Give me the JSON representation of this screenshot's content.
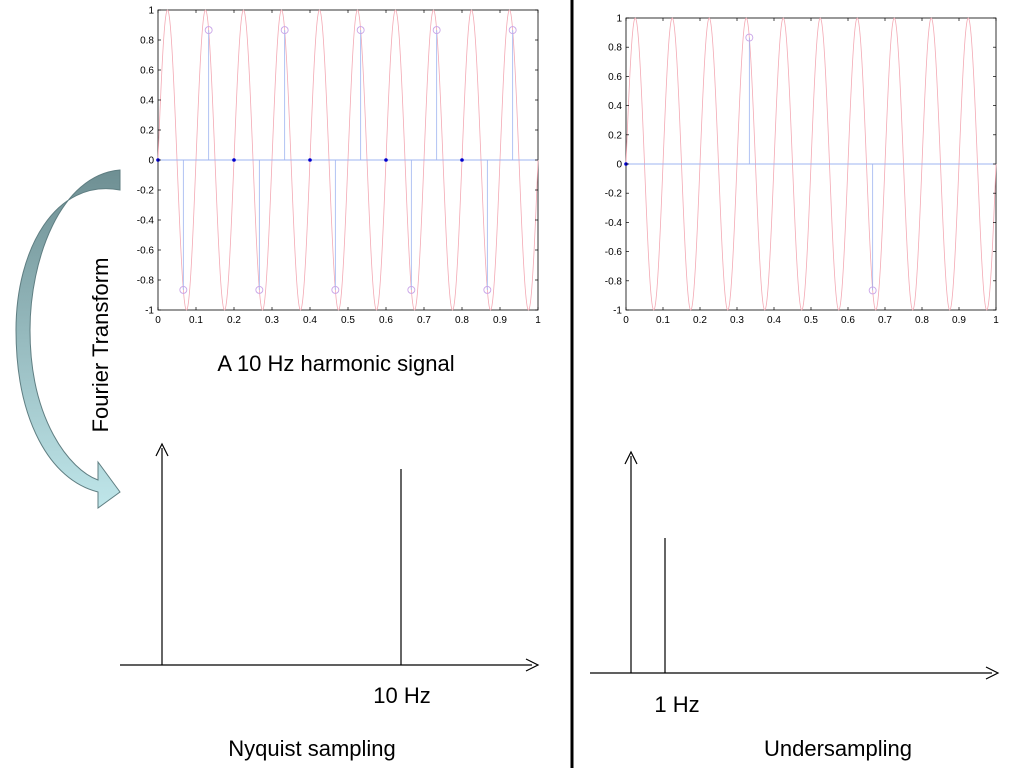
{
  "left_panel": {
    "plot": {
      "x_ticks": [
        "0",
        "0.1",
        "0.2",
        "0.3",
        "0.4",
        "0.5",
        "0.6",
        "0.7",
        "0.8",
        "0.9",
        "1"
      ],
      "y_ticks": [
        "1",
        "0.8",
        "0.6",
        "0.4",
        "0.2",
        "0",
        "-0.2",
        "-0.4",
        "-0.6",
        "-0.8",
        "-1"
      ],
      "xlim": [
        0,
        1
      ],
      "ylim": [
        -1,
        1
      ],
      "signal_freq_hz": 10,
      "sampling_rate_hz": 15,
      "sample_values": [
        0,
        -0.866,
        0.866,
        0,
        -0.866,
        0.866,
        0,
        -0.866,
        0.866,
        0,
        -0.866,
        0.866,
        0,
        -0.866,
        0.866
      ]
    },
    "caption": "A 10 Hz harmonic signal",
    "spectrum_label": "10 Hz",
    "bottom_caption": "Nyquist sampling",
    "spectrum_peak": {
      "freq_hz": 10,
      "relative_height": 0.91
    }
  },
  "right_panel": {
    "plot": {
      "x_ticks": [
        "0",
        "0.1",
        "0.2",
        "0.3",
        "0.4",
        "0.5",
        "0.6",
        "0.7",
        "0.8",
        "0.9",
        "1"
      ],
      "y_ticks": [
        "1",
        "0.8",
        "0.6",
        "0.4",
        "0.2",
        "0",
        "-0.2",
        "-0.4",
        "-0.6",
        "-0.8",
        "-1"
      ],
      "xlim": [
        0,
        1
      ],
      "ylim": [
        -1,
        1
      ],
      "signal_freq_hz": 10,
      "sampling_rate_hz": 3,
      "sample_values": [
        0,
        0.866,
        -0.866
      ]
    },
    "spectrum_label": "1 Hz",
    "bottom_caption": "Undersampling",
    "spectrum_peak": {
      "freq_hz": 1,
      "relative_height": 0.6
    }
  },
  "arrow_label": "Fourier Transform",
  "colors": {
    "signal": "#f3a9b4",
    "stem": "#9fb4f0",
    "marker": "#c9a4e8",
    "zero_marker": "#0000cc",
    "arrow_dark": "#6e8f93",
    "arrow_light": "#bfe6ea"
  }
}
